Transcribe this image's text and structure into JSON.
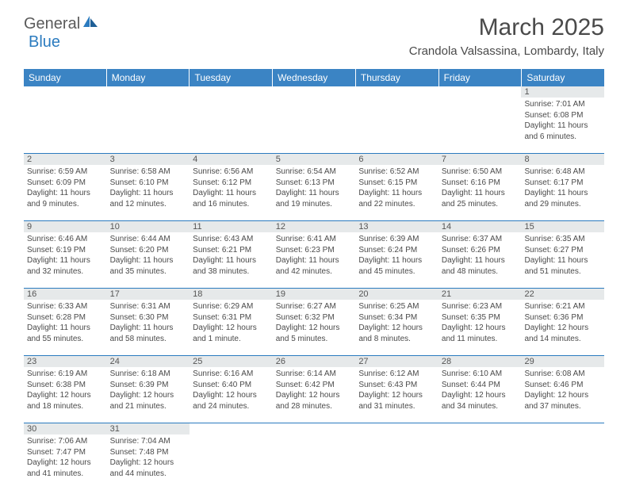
{
  "logo": {
    "text1": "General",
    "text2": "Blue"
  },
  "title": "March 2025",
  "location": "Crandola Valsassina, Lombardy, Italy",
  "colors": {
    "header_bg": "#3b84c4",
    "header_text": "#ffffff",
    "border": "#2b7bbf",
    "shaded": "#e6e9ea",
    "text": "#4a4a4a"
  },
  "day_headers": [
    "Sunday",
    "Monday",
    "Tuesday",
    "Wednesday",
    "Thursday",
    "Friday",
    "Saturday"
  ],
  "weeks": [
    [
      null,
      null,
      null,
      null,
      null,
      null,
      {
        "n": "1",
        "sr": "7:01 AM",
        "ss": "6:08 PM",
        "dl": "11 hours and 6 minutes."
      }
    ],
    [
      {
        "n": "2",
        "sr": "6:59 AM",
        "ss": "6:09 PM",
        "dl": "11 hours and 9 minutes."
      },
      {
        "n": "3",
        "sr": "6:58 AM",
        "ss": "6:10 PM",
        "dl": "11 hours and 12 minutes."
      },
      {
        "n": "4",
        "sr": "6:56 AM",
        "ss": "6:12 PM",
        "dl": "11 hours and 16 minutes."
      },
      {
        "n": "5",
        "sr": "6:54 AM",
        "ss": "6:13 PM",
        "dl": "11 hours and 19 minutes."
      },
      {
        "n": "6",
        "sr": "6:52 AM",
        "ss": "6:15 PM",
        "dl": "11 hours and 22 minutes."
      },
      {
        "n": "7",
        "sr": "6:50 AM",
        "ss": "6:16 PM",
        "dl": "11 hours and 25 minutes."
      },
      {
        "n": "8",
        "sr": "6:48 AM",
        "ss": "6:17 PM",
        "dl": "11 hours and 29 minutes."
      }
    ],
    [
      {
        "n": "9",
        "sr": "6:46 AM",
        "ss": "6:19 PM",
        "dl": "11 hours and 32 minutes."
      },
      {
        "n": "10",
        "sr": "6:44 AM",
        "ss": "6:20 PM",
        "dl": "11 hours and 35 minutes."
      },
      {
        "n": "11",
        "sr": "6:43 AM",
        "ss": "6:21 PM",
        "dl": "11 hours and 38 minutes."
      },
      {
        "n": "12",
        "sr": "6:41 AM",
        "ss": "6:23 PM",
        "dl": "11 hours and 42 minutes."
      },
      {
        "n": "13",
        "sr": "6:39 AM",
        "ss": "6:24 PM",
        "dl": "11 hours and 45 minutes."
      },
      {
        "n": "14",
        "sr": "6:37 AM",
        "ss": "6:26 PM",
        "dl": "11 hours and 48 minutes."
      },
      {
        "n": "15",
        "sr": "6:35 AM",
        "ss": "6:27 PM",
        "dl": "11 hours and 51 minutes."
      }
    ],
    [
      {
        "n": "16",
        "sr": "6:33 AM",
        "ss": "6:28 PM",
        "dl": "11 hours and 55 minutes."
      },
      {
        "n": "17",
        "sr": "6:31 AM",
        "ss": "6:30 PM",
        "dl": "11 hours and 58 minutes."
      },
      {
        "n": "18",
        "sr": "6:29 AM",
        "ss": "6:31 PM",
        "dl": "12 hours and 1 minute."
      },
      {
        "n": "19",
        "sr": "6:27 AM",
        "ss": "6:32 PM",
        "dl": "12 hours and 5 minutes."
      },
      {
        "n": "20",
        "sr": "6:25 AM",
        "ss": "6:34 PM",
        "dl": "12 hours and 8 minutes."
      },
      {
        "n": "21",
        "sr": "6:23 AM",
        "ss": "6:35 PM",
        "dl": "12 hours and 11 minutes."
      },
      {
        "n": "22",
        "sr": "6:21 AM",
        "ss": "6:36 PM",
        "dl": "12 hours and 14 minutes."
      }
    ],
    [
      {
        "n": "23",
        "sr": "6:19 AM",
        "ss": "6:38 PM",
        "dl": "12 hours and 18 minutes."
      },
      {
        "n": "24",
        "sr": "6:18 AM",
        "ss": "6:39 PM",
        "dl": "12 hours and 21 minutes."
      },
      {
        "n": "25",
        "sr": "6:16 AM",
        "ss": "6:40 PM",
        "dl": "12 hours and 24 minutes."
      },
      {
        "n": "26",
        "sr": "6:14 AM",
        "ss": "6:42 PM",
        "dl": "12 hours and 28 minutes."
      },
      {
        "n": "27",
        "sr": "6:12 AM",
        "ss": "6:43 PM",
        "dl": "12 hours and 31 minutes."
      },
      {
        "n": "28",
        "sr": "6:10 AM",
        "ss": "6:44 PM",
        "dl": "12 hours and 34 minutes."
      },
      {
        "n": "29",
        "sr": "6:08 AM",
        "ss": "6:46 PM",
        "dl": "12 hours and 37 minutes."
      }
    ],
    [
      {
        "n": "30",
        "sr": "7:06 AM",
        "ss": "7:47 PM",
        "dl": "12 hours and 41 minutes."
      },
      {
        "n": "31",
        "sr": "7:04 AM",
        "ss": "7:48 PM",
        "dl": "12 hours and 44 minutes."
      },
      null,
      null,
      null,
      null,
      null
    ]
  ],
  "labels": {
    "sunrise": "Sunrise:",
    "sunset": "Sunset:",
    "daylight": "Daylight:"
  }
}
